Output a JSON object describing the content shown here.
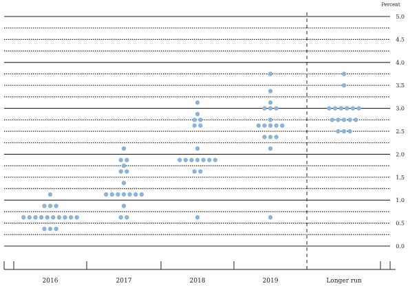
{
  "chart_data": {
    "type": "scatter",
    "ylabel": "Percent",
    "ylim": [
      0,
      5
    ],
    "y_ticks": [
      "0.0",
      "0.5",
      "1.0",
      "1.5",
      "2.0",
      "2.5",
      "3.0",
      "3.5",
      "4.0",
      "4.5",
      "5.0"
    ],
    "categories": [
      "2016",
      "2017",
      "2018",
      "2019",
      "Longer run"
    ],
    "grid": true,
    "dot_color": "#8fb3d6",
    "dots": [
      {
        "category": "2016",
        "y": 1.125,
        "count": 1
      },
      {
        "category": "2016",
        "y": 0.875,
        "count": 3
      },
      {
        "category": "2016",
        "y": 0.625,
        "count": 10
      },
      {
        "category": "2016",
        "y": 0.375,
        "count": 3
      },
      {
        "category": "2017",
        "y": 2.125,
        "count": 1
      },
      {
        "category": "2017",
        "y": 1.875,
        "count": 2
      },
      {
        "category": "2017",
        "y": 1.75,
        "count": 1
      },
      {
        "category": "2017",
        "y": 1.625,
        "count": 2
      },
      {
        "category": "2017",
        "y": 1.375,
        "count": 1
      },
      {
        "category": "2017",
        "y": 1.125,
        "count": 7
      },
      {
        "category": "2017",
        "y": 0.875,
        "count": 1
      },
      {
        "category": "2017",
        "y": 0.625,
        "count": 2
      },
      {
        "category": "2018",
        "y": 3.125,
        "count": 1
      },
      {
        "category": "2018",
        "y": 2.875,
        "count": 1
      },
      {
        "category": "2018",
        "y": 2.75,
        "count": 2
      },
      {
        "category": "2018",
        "y": 2.625,
        "count": 2
      },
      {
        "category": "2018",
        "y": 2.125,
        "count": 1
      },
      {
        "category": "2018",
        "y": 1.875,
        "count": 7
      },
      {
        "category": "2018",
        "y": 1.625,
        "count": 2
      },
      {
        "category": "2018",
        "y": 0.625,
        "count": 1
      },
      {
        "category": "2019",
        "y": 3.75,
        "count": 1
      },
      {
        "category": "2019",
        "y": 3.375,
        "count": 1
      },
      {
        "category": "2019",
        "y": 3.125,
        "count": 1
      },
      {
        "category": "2019",
        "y": 3.0,
        "count": 3
      },
      {
        "category": "2019",
        "y": 2.75,
        "count": 1
      },
      {
        "category": "2019",
        "y": 2.625,
        "count": 5
      },
      {
        "category": "2019",
        "y": 2.375,
        "count": 3
      },
      {
        "category": "2019",
        "y": 2.125,
        "count": 1
      },
      {
        "category": "2019",
        "y": 0.625,
        "count": 1
      },
      {
        "category": "Longer run",
        "y": 3.75,
        "count": 1
      },
      {
        "category": "Longer run",
        "y": 3.5,
        "count": 1
      },
      {
        "category": "Longer run",
        "y": 3.0,
        "count": 6
      },
      {
        "category": "Longer run",
        "y": 2.75,
        "count": 5
      },
      {
        "category": "Longer run",
        "y": 2.5,
        "count": 3
      }
    ]
  }
}
